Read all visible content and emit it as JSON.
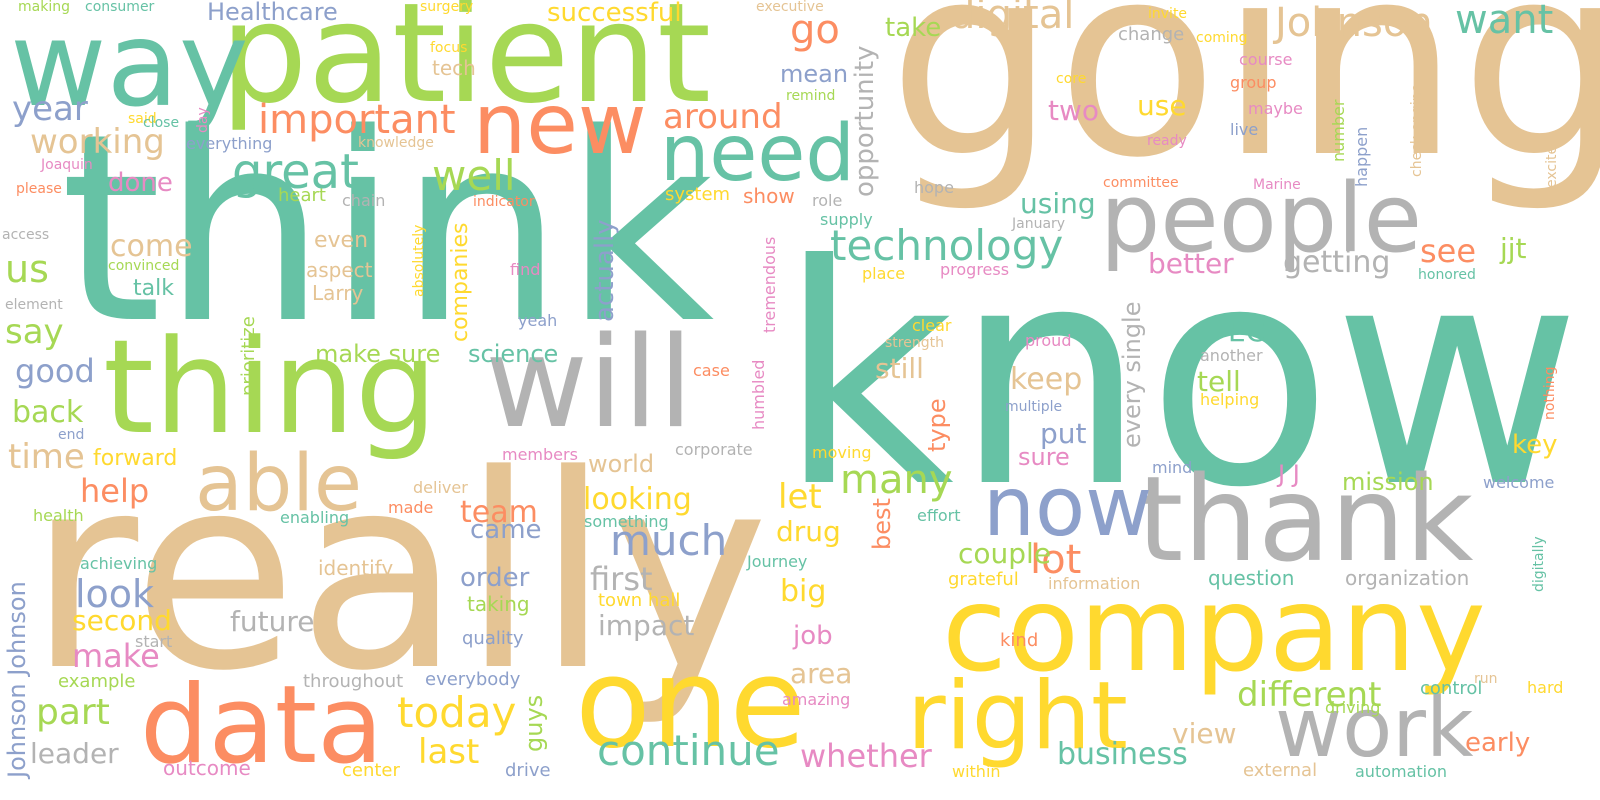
{
  "palette": {
    "teal": "#66c2a5",
    "orange": "#fc8d62",
    "blue": "#8da0cb",
    "pink": "#e78ac3",
    "green": "#a6d854",
    "yellow": "#ffd92f",
    "tan": "#e5c494",
    "gray": "#b3b3b3"
  },
  "words": [
    {
      "text": "know",
      "color": "teal"
    },
    {
      "text": "going",
      "color": "tan"
    },
    {
      "text": "really",
      "color": "tan"
    },
    {
      "text": "think",
      "color": "teal"
    },
    {
      "text": "patient",
      "color": "green"
    },
    {
      "text": "way",
      "color": "teal"
    },
    {
      "text": "company",
      "color": "yellow"
    },
    {
      "text": "thank",
      "color": "gray"
    },
    {
      "text": "thing",
      "color": "green"
    },
    {
      "text": "will",
      "color": "gray"
    },
    {
      "text": "one",
      "color": "yellow"
    },
    {
      "text": "data",
      "color": "orange"
    },
    {
      "text": "people",
      "color": "gray"
    },
    {
      "text": "right",
      "color": "yellow"
    },
    {
      "text": "work",
      "color": "gray"
    },
    {
      "text": "new",
      "color": "orange"
    },
    {
      "text": "need",
      "color": "teal"
    },
    {
      "text": "able",
      "color": "tan"
    },
    {
      "text": "now",
      "color": "blue"
    },
    {
      "text": "technology",
      "color": "teal"
    },
    {
      "text": "digital",
      "color": "tan"
    },
    {
      "text": "Johnson",
      "color": "tan"
    },
    {
      "text": "great",
      "color": "teal"
    },
    {
      "text": "want",
      "color": "teal"
    },
    {
      "text": "important",
      "color": "orange"
    },
    {
      "text": "continue",
      "color": "teal"
    },
    {
      "text": "today",
      "color": "yellow"
    },
    {
      "text": "much",
      "color": "blue"
    },
    {
      "text": "many",
      "color": "green"
    },
    {
      "text": "different",
      "color": "green"
    },
    {
      "text": "well",
      "color": "green"
    },
    {
      "text": "go",
      "color": "orange"
    },
    {
      "text": "around",
      "color": "orange"
    },
    {
      "text": "lot",
      "color": "orange"
    },
    {
      "text": "whether",
      "color": "pink"
    },
    {
      "text": "business",
      "color": "teal"
    },
    {
      "text": "look",
      "color": "blue"
    },
    {
      "text": "time",
      "color": "tan"
    },
    {
      "text": "part",
      "color": "green"
    },
    {
      "text": "make",
      "color": "pink"
    },
    {
      "text": "last",
      "color": "yellow"
    },
    {
      "text": "working",
      "color": "tan"
    },
    {
      "text": "year",
      "color": "blue"
    },
    {
      "text": "successful",
      "color": "yellow"
    },
    {
      "text": "Healthcare",
      "color": "blue"
    },
    {
      "text": "us",
      "color": "green"
    },
    {
      "text": "say",
      "color": "green"
    },
    {
      "text": "good",
      "color": "blue"
    },
    {
      "text": "back",
      "color": "green"
    },
    {
      "text": "help",
      "color": "orange"
    },
    {
      "text": "come",
      "color": "tan"
    },
    {
      "text": "done",
      "color": "pink"
    },
    {
      "text": "take",
      "color": "green"
    },
    {
      "text": "mean",
      "color": "blue"
    },
    {
      "text": "use",
      "color": "yellow"
    },
    {
      "text": "two",
      "color": "pink"
    },
    {
      "text": "see",
      "color": "orange"
    },
    {
      "text": "jjt",
      "color": "green"
    },
    {
      "text": "getting",
      "color": "gray"
    },
    {
      "text": "better",
      "color": "pink"
    },
    {
      "text": "using",
      "color": "teal"
    },
    {
      "text": "EC",
      "color": "teal"
    },
    {
      "text": "keep",
      "color": "tan"
    },
    {
      "text": "tell",
      "color": "green"
    },
    {
      "text": "still",
      "color": "tan"
    },
    {
      "text": "put",
      "color": "blue"
    },
    {
      "text": "sure",
      "color": "pink"
    },
    {
      "text": "let",
      "color": "yellow"
    },
    {
      "text": "looking",
      "color": "yellow"
    },
    {
      "text": "team",
      "color": "orange"
    },
    {
      "text": "came",
      "color": "blue"
    },
    {
      "text": "drug",
      "color": "yellow"
    },
    {
      "text": "big",
      "color": "yellow"
    },
    {
      "text": "couple",
      "color": "green"
    },
    {
      "text": "first",
      "color": "gray"
    },
    {
      "text": "impact",
      "color": "gray"
    },
    {
      "text": "order",
      "color": "blue"
    },
    {
      "text": "second",
      "color": "yellow"
    },
    {
      "text": "future",
      "color": "gray"
    },
    {
      "text": "leader",
      "color": "gray"
    },
    {
      "text": "job",
      "color": "pink"
    },
    {
      "text": "area",
      "color": "tan"
    },
    {
      "text": "view",
      "color": "tan"
    },
    {
      "text": "early",
      "color": "orange"
    },
    {
      "text": "key",
      "color": "yellow"
    },
    {
      "text": "mission",
      "color": "green"
    },
    {
      "text": "forward",
      "color": "yellow"
    },
    {
      "text": "make sure",
      "color": "green"
    },
    {
      "text": "science",
      "color": "teal"
    },
    {
      "text": "talk",
      "color": "teal"
    },
    {
      "text": "world",
      "color": "tan"
    },
    {
      "text": "J J",
      "color": "pink"
    },
    {
      "text": "question",
      "color": "teal"
    },
    {
      "text": "organization",
      "color": "gray"
    },
    {
      "text": "taking",
      "color": "green"
    },
    {
      "text": "town hall",
      "color": "yellow"
    },
    {
      "text": "outcome",
      "color": "pink"
    },
    {
      "text": "example",
      "color": "green"
    },
    {
      "text": "throughout",
      "color": "gray"
    },
    {
      "text": "everybody",
      "color": "blue"
    },
    {
      "text": "drive",
      "color": "blue"
    },
    {
      "text": "center",
      "color": "yellow"
    },
    {
      "text": "within",
      "color": "yellow"
    },
    {
      "text": "external",
      "color": "tan"
    },
    {
      "text": "automation",
      "color": "teal"
    },
    {
      "text": "control",
      "color": "teal"
    },
    {
      "text": "hard",
      "color": "yellow"
    },
    {
      "text": "amazing",
      "color": "pink"
    },
    {
      "text": "driving",
      "color": "green"
    },
    {
      "text": "kind",
      "color": "orange"
    },
    {
      "text": "grateful",
      "color": "yellow"
    },
    {
      "text": "information",
      "color": "tan"
    },
    {
      "text": "identify",
      "color": "tan"
    },
    {
      "text": "quality",
      "color": "blue"
    },
    {
      "text": "start",
      "color": "gray"
    },
    {
      "text": "achieving",
      "color": "teal"
    },
    {
      "text": "health",
      "color": "green"
    },
    {
      "text": "enabling",
      "color": "teal"
    },
    {
      "text": "made",
      "color": "orange"
    },
    {
      "text": "deliver",
      "color": "tan"
    },
    {
      "text": "something",
      "color": "teal"
    },
    {
      "text": "effort",
      "color": "teal"
    },
    {
      "text": "Journey",
      "color": "teal"
    },
    {
      "text": "members",
      "color": "pink"
    },
    {
      "text": "corporate",
      "color": "gray"
    },
    {
      "text": "moving",
      "color": "yellow"
    },
    {
      "text": "mind",
      "color": "blue"
    },
    {
      "text": "welcome",
      "color": "blue"
    },
    {
      "text": "case",
      "color": "orange"
    },
    {
      "text": "strength",
      "color": "tan"
    },
    {
      "text": "clear",
      "color": "yellow"
    },
    {
      "text": "proud",
      "color": "pink"
    },
    {
      "text": "another",
      "color": "gray"
    },
    {
      "text": "multiple",
      "color": "blue"
    },
    {
      "text": "helping",
      "color": "yellow"
    },
    {
      "text": "yeah",
      "color": "blue"
    },
    {
      "text": "find",
      "color": "pink"
    },
    {
      "text": "place",
      "color": "yellow"
    },
    {
      "text": "progress",
      "color": "pink"
    },
    {
      "text": "honored",
      "color": "teal"
    },
    {
      "text": "role",
      "color": "gray"
    },
    {
      "text": "supply",
      "color": "teal"
    },
    {
      "text": "January",
      "color": "gray"
    },
    {
      "text": "hope",
      "color": "gray"
    },
    {
      "text": "committee",
      "color": "orange"
    },
    {
      "text": "Marine",
      "color": "pink"
    },
    {
      "text": "live",
      "color": "blue"
    },
    {
      "text": "ready",
      "color": "pink"
    },
    {
      "text": "maybe",
      "color": "pink"
    },
    {
      "text": "group",
      "color": "orange"
    },
    {
      "text": "core",
      "color": "yellow"
    },
    {
      "text": "course",
      "color": "pink"
    },
    {
      "text": "invite",
      "color": "yellow"
    },
    {
      "text": "change",
      "color": "gray"
    },
    {
      "text": "coming",
      "color": "yellow"
    },
    {
      "text": "executive",
      "color": "tan"
    },
    {
      "text": "show",
      "color": "orange"
    },
    {
      "text": "system",
      "color": "yellow"
    },
    {
      "text": "heart",
      "color": "green"
    },
    {
      "text": "chain",
      "color": "gray"
    },
    {
      "text": "indicator",
      "color": "orange"
    },
    {
      "text": "remind",
      "color": "green"
    },
    {
      "text": "surgery",
      "color": "yellow"
    },
    {
      "text": "focus",
      "color": "yellow"
    },
    {
      "text": "tech",
      "color": "tan"
    },
    {
      "text": "making",
      "color": "green"
    },
    {
      "text": "consumer",
      "color": "teal"
    },
    {
      "text": "said",
      "color": "yellow"
    },
    {
      "text": "close",
      "color": "teal"
    },
    {
      "text": "everything",
      "color": "blue"
    },
    {
      "text": "knowledge",
      "color": "tan"
    },
    {
      "text": "Joaquin",
      "color": "pink"
    },
    {
      "text": "please",
      "color": "orange"
    },
    {
      "text": "access",
      "color": "gray"
    },
    {
      "text": "convinced",
      "color": "green"
    },
    {
      "text": "element",
      "color": "gray"
    },
    {
      "text": "end",
      "color": "blue"
    },
    {
      "text": "even",
      "color": "tan"
    },
    {
      "text": "aspect",
      "color": "tan"
    },
    {
      "text": "Larry",
      "color": "tan"
    },
    {
      "text": "run",
      "color": "tan"
    },
    {
      "text": "day",
      "color": "pink"
    },
    {
      "text": "Johnson Johnson",
      "color": "blue"
    },
    {
      "text": "opportunity",
      "color": "gray"
    },
    {
      "text": "companies",
      "color": "yellow"
    },
    {
      "text": "actually",
      "color": "blue"
    },
    {
      "text": "every single",
      "color": "gray"
    },
    {
      "text": "type",
      "color": "orange"
    },
    {
      "text": "best",
      "color": "orange"
    },
    {
      "text": "guys",
      "color": "green"
    },
    {
      "text": "prioritize",
      "color": "green"
    },
    {
      "text": "absolutely",
      "color": "yellow"
    },
    {
      "text": "tremendous",
      "color": "pink"
    },
    {
      "text": "humbled",
      "color": "pink"
    },
    {
      "text": "number",
      "color": "green"
    },
    {
      "text": "happen",
      "color": "blue"
    },
    {
      "text": "check engine",
      "color": "tan"
    },
    {
      "text": "excited",
      "color": "tan"
    },
    {
      "text": "nothing",
      "color": "orange"
    },
    {
      "text": "digitally",
      "color": "teal"
    }
  ]
}
